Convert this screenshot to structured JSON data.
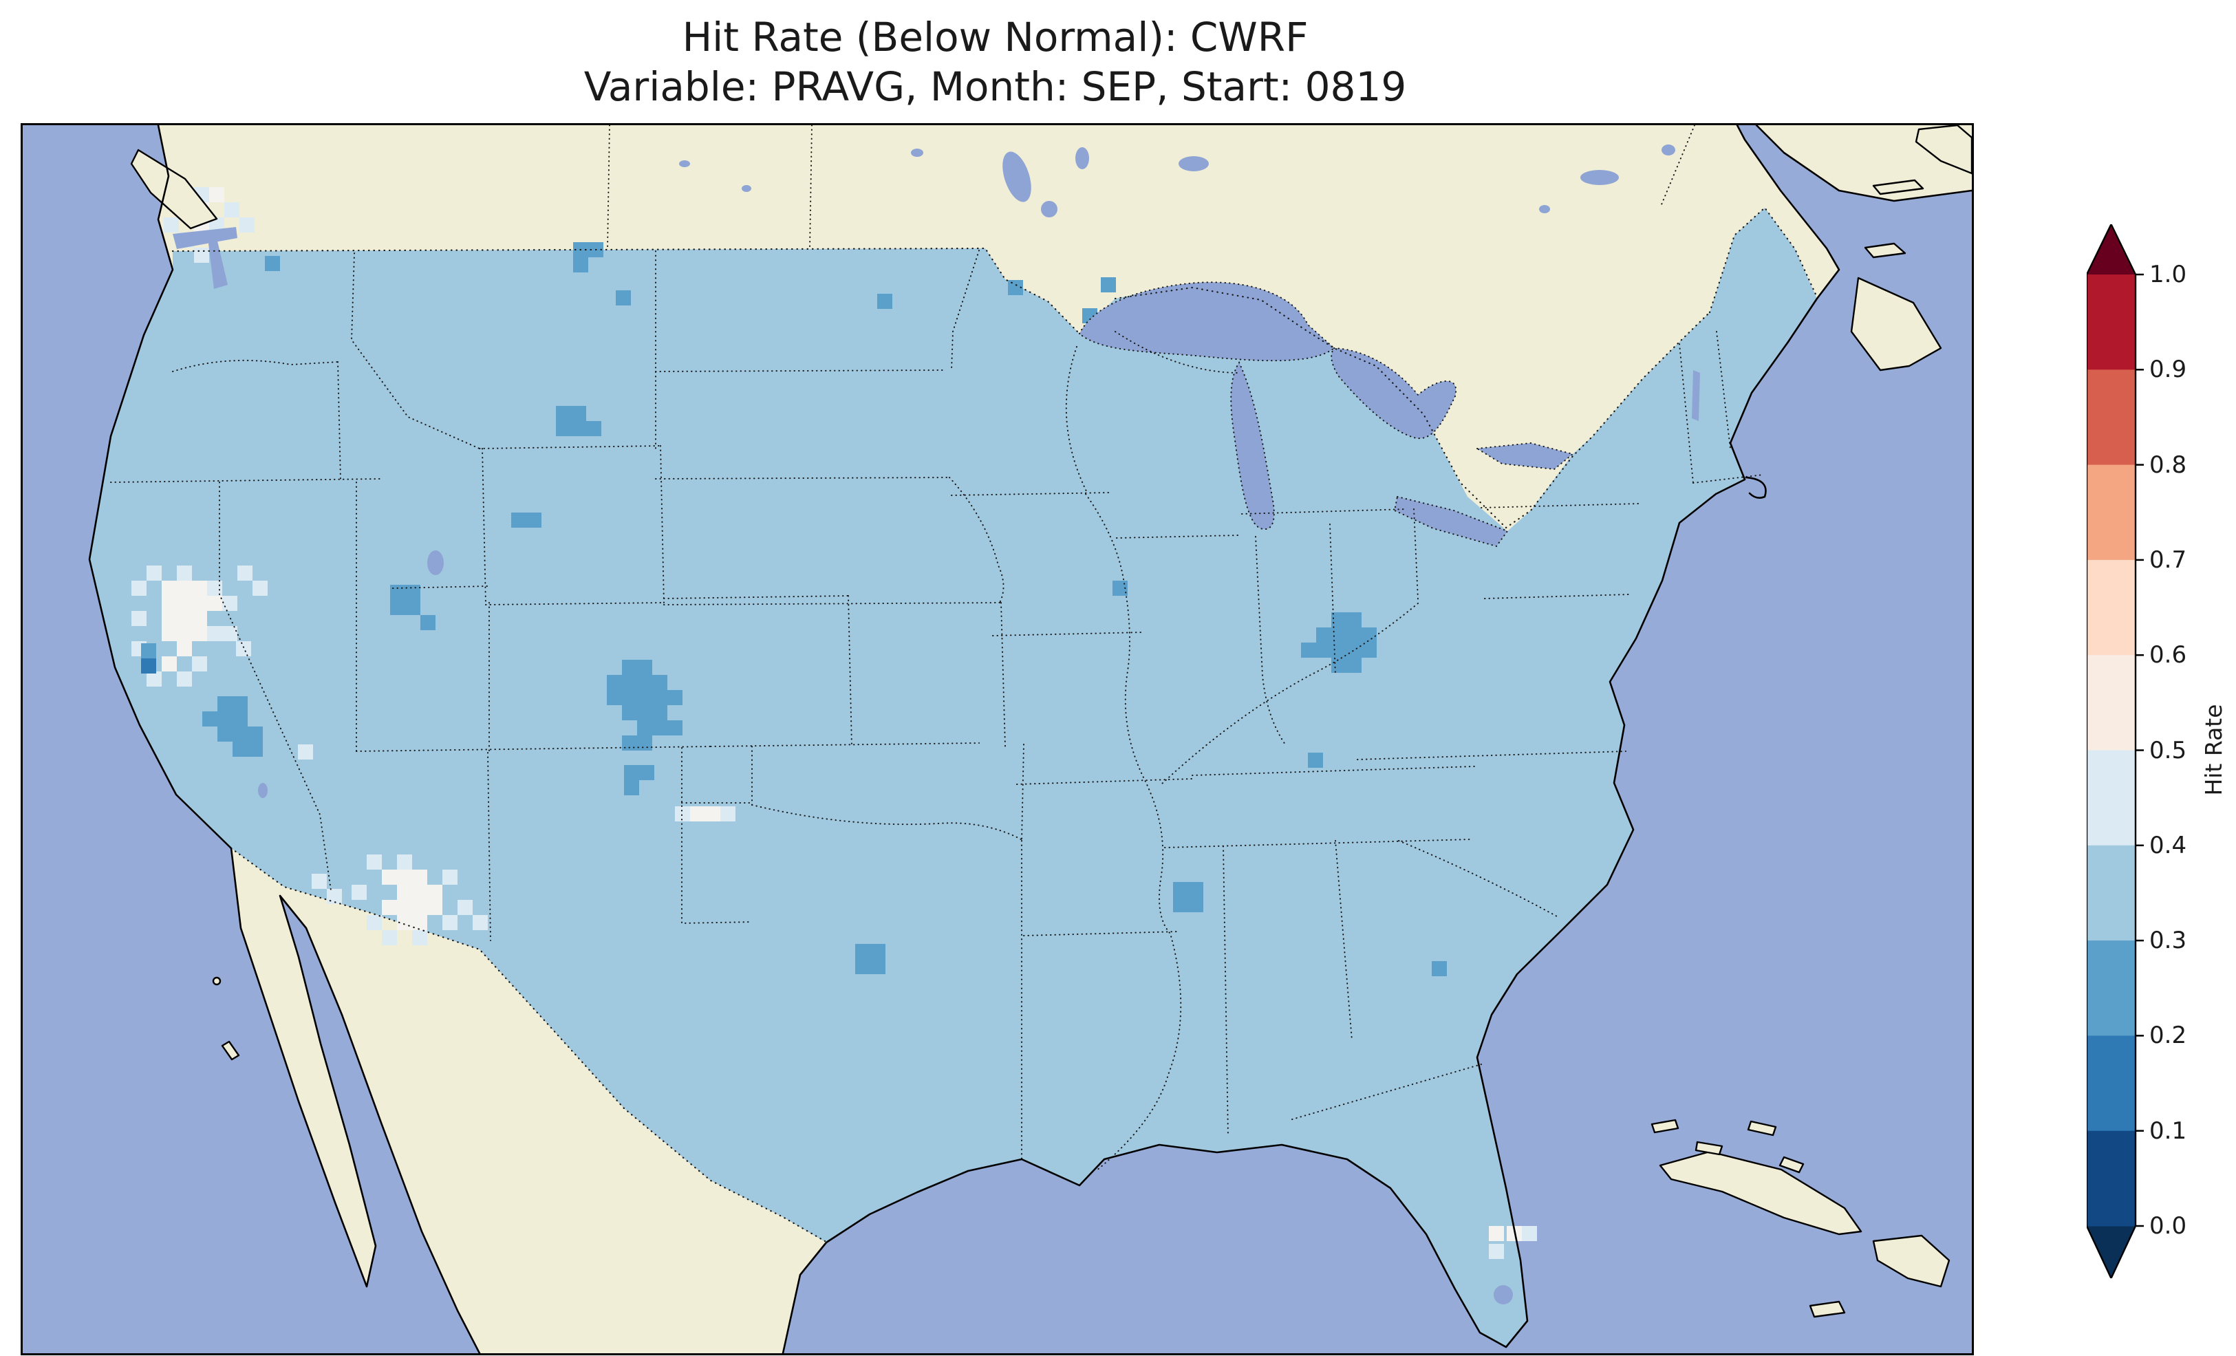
{
  "figure": {
    "title_line1": "Hit Rate (Below Normal): CWRF",
    "title_line2": "Variable: PRAVG, Month: SEP, Start: 0819"
  },
  "colorbar": {
    "label": "Hit Rate",
    "ticks": [
      "1.0",
      "0.9",
      "0.8",
      "0.7",
      "0.6",
      "0.5",
      "0.4",
      "0.3",
      "0.2",
      "0.1",
      "0.0"
    ],
    "band_colors_top_to_bottom": [
      "#b2182b",
      "#d6604d",
      "#f4a582",
      "#fddbc7",
      "#f9ece3",
      "#dcebf3",
      "#a0c8df",
      "#5ba0cb",
      "#2f79b5",
      "#124984"
    ],
    "extend_over_color": "#67001f",
    "extend_under_color": "#0a3058"
  },
  "map": {
    "colors": {
      "ocean": "#96abd8",
      "water": "#8ea4d4",
      "land": "#f1eed7",
      "band_01_02": "#2f79b5",
      "band_02_03": "#5ba0cb",
      "band_03_04": "#a0c8df",
      "band_04_05": "#dcebf3",
      "band_05_06": "#f5f3ef"
    }
  },
  "chart_data": {
    "type": "heatmap",
    "title": "Hit Rate (Below Normal): CWRF",
    "subtitle": "Variable: PRAVG, Month: SEP, Start: 0819",
    "model": "CWRF",
    "variable": "PRAVG",
    "month": "SEP",
    "start": "0819",
    "category": "Below Normal",
    "region": "Contiguous United States map (with surrounding Canada, Mexico, Caribbean)",
    "colorbar_label": "Hit Rate",
    "colorbar_ticks": [
      0.0,
      0.1,
      0.2,
      0.3,
      0.4,
      0.5,
      0.6,
      0.7,
      0.8,
      0.9,
      1.0
    ],
    "value_range": [
      0.0,
      1.0
    ],
    "colormap": "RdBu_r, discrete 0.1 bins, pointed extensions on both ends",
    "legend_position": "right vertical colorbar",
    "field_summary": [
      {
        "value_bin": "0.3-0.4",
        "coverage": "dominant hit-rate value across most of the contiguous United States"
      },
      {
        "value_bin": "0.4-0.5",
        "coverage": "patches in western Washington, central California and Nevada, New Mexico / West Texas, scattered cells near south Florida"
      },
      {
        "value_bin": "0.5-0.6",
        "coverage": "small white cores inside the California and New Mexico light patches and coastal Pacific Northwest"
      },
      {
        "value_bin": "0.2-0.3",
        "coverage": "scattered cells: large Colorado-Utah blob, southern California, Utah, Wyoming, Montana, Minnesota, Illinois, Indiana-Ohio blob, Kentucky, east Texas, Mississippi-Alabama, Georgia"
      },
      {
        "value_bin": "0.1-0.2",
        "coverage": "single cell on the central California coast"
      }
    ]
  }
}
